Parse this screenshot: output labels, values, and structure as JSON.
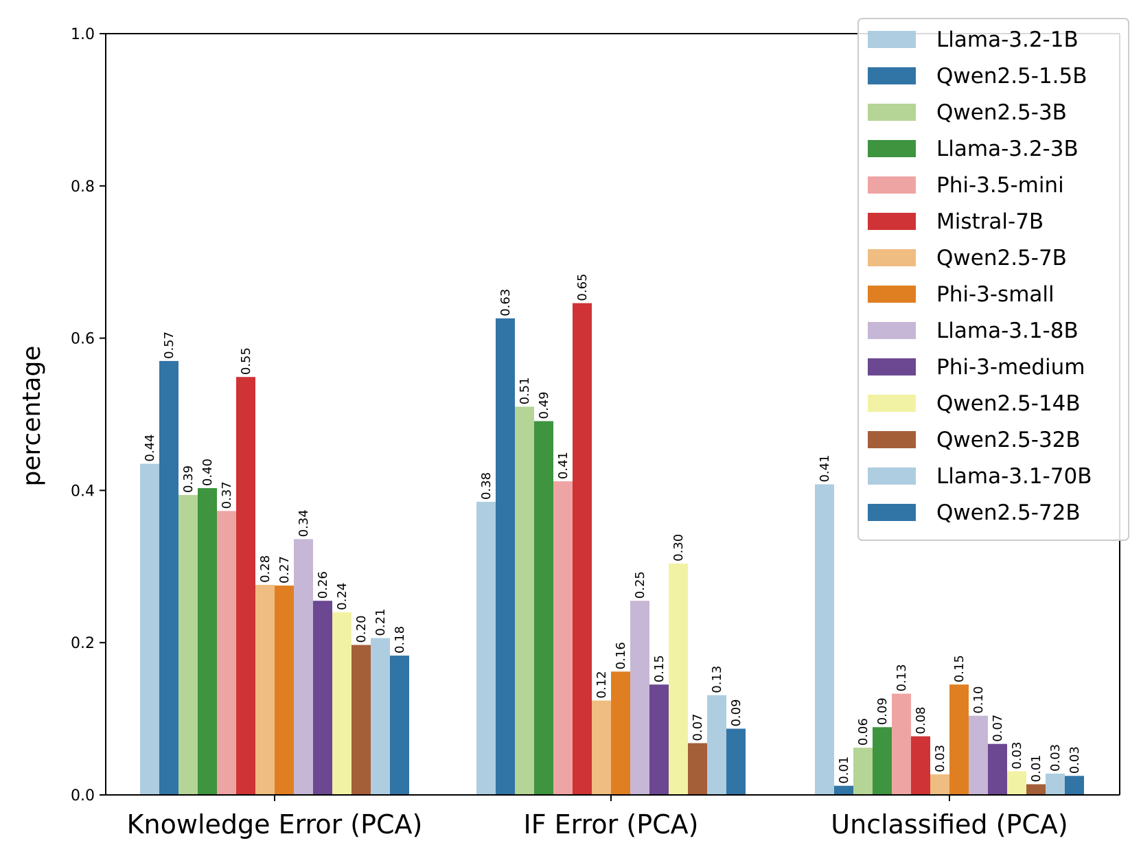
{
  "chart_data": {
    "type": "bar",
    "title": "",
    "xlabel": "",
    "ylabel": "percentage",
    "ylim": [
      0,
      1.0
    ],
    "yticks": [
      "0.0",
      "0.2",
      "0.4",
      "0.6",
      "0.8",
      "1.0"
    ],
    "grid": false,
    "legend_position": "top-right",
    "categories": [
      "Knowledge Error (PCA)",
      "IF Error (PCA)",
      "Unclassified (PCA)"
    ],
    "series": [
      {
        "name": "Llama-3.2-1B",
        "color": "#aecde0",
        "values": [
          0.435,
          0.385,
          0.408
        ],
        "labels": [
          "0.44",
          "0.38",
          "0.41"
        ]
      },
      {
        "name": "Qwen2.5-1.5B",
        "color": "#3174a6",
        "values": [
          0.57,
          0.626,
          0.012
        ],
        "labels": [
          "0.57",
          "0.63",
          "0.01"
        ]
      },
      {
        "name": "Qwen2.5-3B",
        "color": "#b4d596",
        "values": [
          0.394,
          0.51,
          0.062
        ],
        "labels": [
          "0.39",
          "0.51",
          "0.06"
        ]
      },
      {
        "name": "Llama-3.2-3B",
        "color": "#3e943f",
        "values": [
          0.403,
          0.491,
          0.089
        ],
        "labels": [
          "0.40",
          "0.49",
          "0.09"
        ]
      },
      {
        "name": "Phi-3.5-mini",
        "color": "#efa4a4",
        "values": [
          0.373,
          0.412,
          0.133
        ],
        "labels": [
          "0.37",
          "0.41",
          "0.13"
        ]
      },
      {
        "name": "Mistral-7B",
        "color": "#cf3336",
        "values": [
          0.549,
          0.646,
          0.077
        ],
        "labels": [
          "0.55",
          "0.65",
          "0.08"
        ]
      },
      {
        "name": "Qwen2.5-7B",
        "color": "#efbd82",
        "values": [
          0.276,
          0.124,
          0.027
        ],
        "labels": [
          "0.28",
          "0.12",
          "0.03"
        ]
      },
      {
        "name": "Phi-3-small",
        "color": "#e07f22",
        "values": [
          0.275,
          0.162,
          0.145
        ],
        "labels": [
          "0.27",
          "0.16",
          "0.15"
        ]
      },
      {
        "name": "Llama-3.1-8B",
        "color": "#c6b7d6",
        "values": [
          0.336,
          0.255,
          0.104
        ],
        "labels": [
          "0.34",
          "0.25",
          "0.10"
        ]
      },
      {
        "name": "Phi-3-medium",
        "color": "#6b4891",
        "values": [
          0.255,
          0.145,
          0.067
        ],
        "labels": [
          "0.26",
          "0.15",
          "0.07"
        ]
      },
      {
        "name": "Qwen2.5-14B",
        "color": "#f2f2a4",
        "values": [
          0.24,
          0.304,
          0.031
        ],
        "labels": [
          "0.24",
          "0.30",
          "0.03"
        ]
      },
      {
        "name": "Qwen2.5-32B",
        "color": "#a45f39",
        "values": [
          0.197,
          0.068,
          0.014
        ],
        "labels": [
          "0.20",
          "0.07",
          "0.01"
        ]
      },
      {
        "name": "Llama-3.1-70B",
        "color": "#aecde0",
        "values": [
          0.206,
          0.131,
          0.028
        ],
        "labels": [
          "0.21",
          "0.13",
          "0.03"
        ]
      },
      {
        "name": "Qwen2.5-72B",
        "color": "#3174a6",
        "values": [
          0.183,
          0.087,
          0.025
        ],
        "labels": [
          "0.18",
          "0.09",
          "0.03"
        ]
      }
    ]
  }
}
